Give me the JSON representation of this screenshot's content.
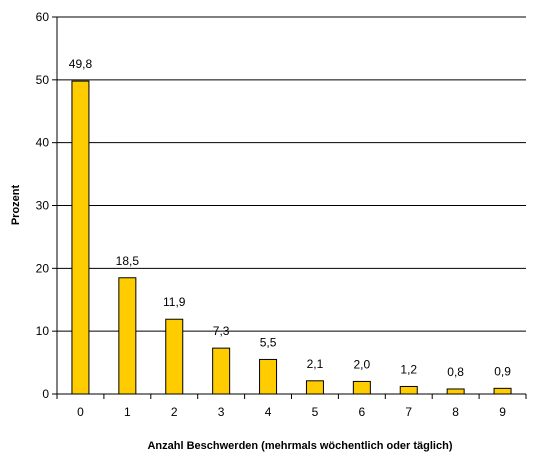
{
  "chart_data": {
    "type": "bar",
    "categories": [
      "0",
      "1",
      "2",
      "3",
      "4",
      "5",
      "6",
      "7",
      "8",
      "9"
    ],
    "values": [
      49.8,
      18.5,
      11.9,
      7.3,
      5.5,
      2.1,
      2.0,
      1.2,
      0.8,
      0.9
    ],
    "data_labels": [
      "49,8",
      "18,5",
      "11,9",
      "7,3",
      "5,5",
      "2,1",
      "2,0",
      "1,2",
      "0,8",
      "0,9"
    ],
    "xlabel": "Anzahl Beschwerden (mehrmals wöchentlich oder täglich)",
    "ylabel": "Prozent",
    "ylim": [
      0,
      60
    ],
    "yticks": [
      0,
      10,
      20,
      30,
      40,
      50,
      60
    ],
    "grid": true,
    "legend": "none",
    "bar_color": "#ffcc00",
    "bar_edge_color": "#000000"
  }
}
